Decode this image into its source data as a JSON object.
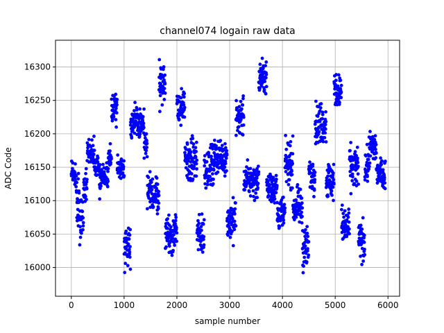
{
  "chart_data": {
    "type": "scatter",
    "title": "channel074 logain raw data",
    "xlabel": "sample number",
    "ylabel": "ADC Code",
    "xlim": [
      -300,
      6220
    ],
    "ylim": [
      15957,
      16340
    ],
    "xticks": [
      0,
      1000,
      2000,
      3000,
      4000,
      5000,
      6000
    ],
    "yticks": [
      16000,
      16050,
      16100,
      16150,
      16200,
      16250,
      16300
    ],
    "grid": true,
    "marker_color": "#0000ff",
    "n_points": 5950,
    "segments": [
      {
        "x_start": 0,
        "x_end": 90,
        "level": 16140,
        "spread": 15
      },
      {
        "x_start": 90,
        "x_end": 150,
        "level": 16110,
        "spread": 35
      },
      {
        "x_start": 150,
        "x_end": 230,
        "level": 16065,
        "spread": 30
      },
      {
        "x_start": 230,
        "x_end": 300,
        "level": 16120,
        "spread": 20
      },
      {
        "x_start": 300,
        "x_end": 440,
        "level": 16170,
        "spread": 20
      },
      {
        "x_start": 440,
        "x_end": 530,
        "level": 16150,
        "spread": 15
      },
      {
        "x_start": 530,
        "x_end": 700,
        "level": 16135,
        "spread": 20
      },
      {
        "x_start": 700,
        "x_end": 760,
        "level": 16160,
        "spread": 15
      },
      {
        "x_start": 760,
        "x_end": 870,
        "level": 16240,
        "spread": 20
      },
      {
        "x_start": 870,
        "x_end": 1000,
        "level": 16150,
        "spread": 15
      },
      {
        "x_start": 1000,
        "x_end": 1120,
        "level": 16035,
        "spread": 25
      },
      {
        "x_start": 1120,
        "x_end": 1380,
        "level": 16215,
        "spread": 20
      },
      {
        "x_start": 1380,
        "x_end": 1440,
        "level": 16180,
        "spread": 20
      },
      {
        "x_start": 1440,
        "x_end": 1660,
        "level": 16110,
        "spread": 22
      },
      {
        "x_start": 1660,
        "x_end": 1780,
        "level": 16275,
        "spread": 25
      },
      {
        "x_start": 1780,
        "x_end": 2000,
        "level": 16050,
        "spread": 25
      },
      {
        "x_start": 2000,
        "x_end": 2150,
        "level": 16240,
        "spread": 20
      },
      {
        "x_start": 2150,
        "x_end": 2380,
        "level": 16160,
        "spread": 25
      },
      {
        "x_start": 2380,
        "x_end": 2520,
        "level": 16050,
        "spread": 25
      },
      {
        "x_start": 2520,
        "x_end": 2700,
        "level": 16150,
        "spread": 25
      },
      {
        "x_start": 2700,
        "x_end": 2950,
        "level": 16165,
        "spread": 20
      },
      {
        "x_start": 2950,
        "x_end": 3120,
        "level": 16070,
        "spread": 25
      },
      {
        "x_start": 3120,
        "x_end": 3270,
        "level": 16225,
        "spread": 25
      },
      {
        "x_start": 3270,
        "x_end": 3550,
        "level": 16130,
        "spread": 20
      },
      {
        "x_start": 3550,
        "x_end": 3700,
        "level": 16285,
        "spread": 20
      },
      {
        "x_start": 3700,
        "x_end": 3900,
        "level": 16120,
        "spread": 20
      },
      {
        "x_start": 3900,
        "x_end": 4050,
        "level": 16080,
        "spread": 20
      },
      {
        "x_start": 4050,
        "x_end": 4200,
        "level": 16155,
        "spread": 25
      },
      {
        "x_start": 4200,
        "x_end": 4380,
        "level": 16090,
        "spread": 22
      },
      {
        "x_start": 4380,
        "x_end": 4500,
        "level": 16030,
        "spread": 25
      },
      {
        "x_start": 4500,
        "x_end": 4620,
        "level": 16140,
        "spread": 20
      },
      {
        "x_start": 4620,
        "x_end": 4830,
        "level": 16215,
        "spread": 25
      },
      {
        "x_start": 4830,
        "x_end": 4980,
        "level": 16130,
        "spread": 25
      },
      {
        "x_start": 4980,
        "x_end": 5120,
        "level": 16265,
        "spread": 20
      },
      {
        "x_start": 5120,
        "x_end": 5270,
        "level": 16060,
        "spread": 25
      },
      {
        "x_start": 5270,
        "x_end": 5440,
        "level": 16150,
        "spread": 25
      },
      {
        "x_start": 5440,
        "x_end": 5560,
        "level": 16040,
        "spread": 25
      },
      {
        "x_start": 5560,
        "x_end": 5640,
        "level": 16150,
        "spread": 20
      },
      {
        "x_start": 5640,
        "x_end": 5780,
        "level": 16180,
        "spread": 20
      },
      {
        "x_start": 5780,
        "x_end": 5950,
        "level": 16140,
        "spread": 18
      }
    ]
  }
}
